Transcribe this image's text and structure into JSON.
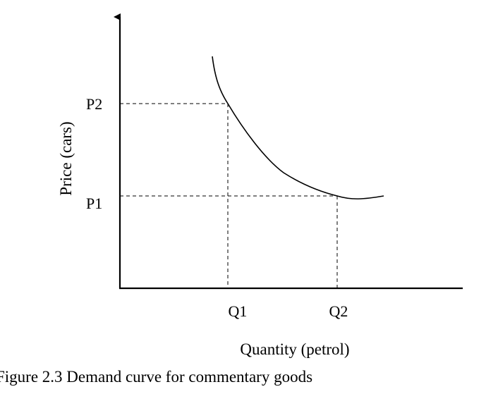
{
  "caption": "Figure 2.3 Demand curve for commentary goods",
  "colors": {
    "line": "#000000",
    "background": "#ffffff"
  },
  "chart_data": {
    "type": "line",
    "title": "",
    "xlabel": "Quantity (petrol)",
    "ylabel": "Price (cars)",
    "x_ticks": [
      "Q1",
      "Q2"
    ],
    "y_ticks": [
      "P2",
      "P1"
    ],
    "points": [
      {
        "label": "Q1, P2",
        "x": "Q1",
        "y": "P2"
      },
      {
        "label": "Q2, P1",
        "x": "Q2",
        "y": "P1"
      }
    ],
    "reference_lines": "dashed guides from the points to both axes",
    "grid": false,
    "legend": "none",
    "axes_style": "origin-only with arrow on the vertical axis"
  }
}
